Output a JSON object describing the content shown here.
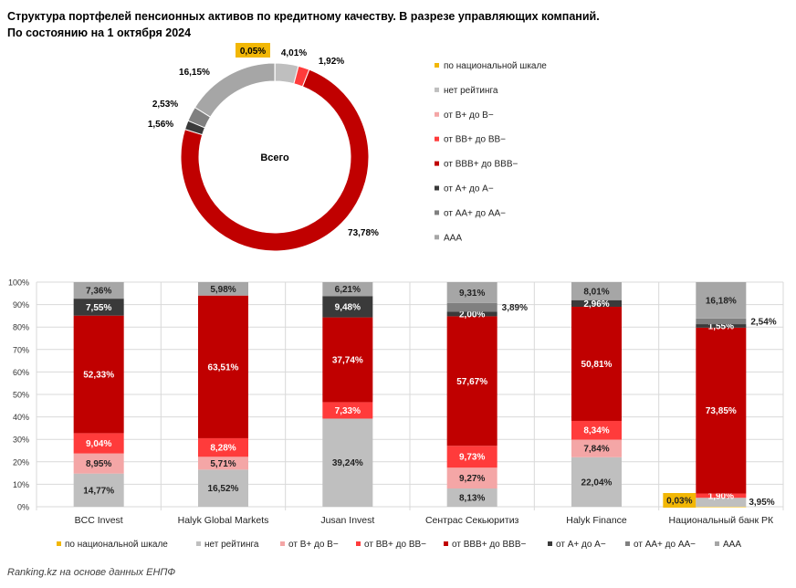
{
  "title": {
    "line1": "Структура портфелей пенсионных активов по кредитному качеству. В разрезе управляющих компаний.",
    "line2": "По состоянию на 1 октября 2024"
  },
  "colors": {
    "по национальной шкале": "#f2b705",
    "нет рейтинга": "#bfbfbf",
    "от B+ до B−": "#f4a6a6",
    "от BB+ до BB−": "#ff3b3b",
    "от BBB+ до BBB−": "#c00000",
    "от A+ до A−": "#3a3a3a",
    "от AA+ до AA−": "#808080",
    "AAA": "#a6a6a6"
  },
  "chart_data": [
    {
      "type": "pie",
      "variant": "donut",
      "center_label": "Всего",
      "legend_placement": "right",
      "legend": [
        "по национальной шкале",
        "нет рейтинга",
        "от B+ до B−",
        "от BB+ до BB−",
        "от BBB+ до BBB−",
        "от A+ до A−",
        "от AA+ до AA−",
        "AAA"
      ],
      "slices": [
        {
          "name": "по национальной шкале",
          "value": 0.05,
          "label": "0,05%"
        },
        {
          "name": "нет рейтинга",
          "value": 4.01,
          "label": "4,01%"
        },
        {
          "name": "от BB+ до BB−",
          "value": 1.92,
          "label": "1,92%"
        },
        {
          "name": "от BBB+ до BBB−",
          "value": 73.78,
          "label": "73,78%"
        },
        {
          "name": "от A+ до A−",
          "value": 1.56,
          "label": "1,56%"
        },
        {
          "name": "от AA+ до AA−",
          "value": 2.53,
          "label": "2,53%"
        },
        {
          "name": "AAA",
          "value": 16.15,
          "label": "16,15%"
        }
      ]
    },
    {
      "type": "bar",
      "stacked": true,
      "percent": true,
      "ylim": [
        0,
        100
      ],
      "yticks": [
        "0%",
        "10%",
        "20%",
        "30%",
        "40%",
        "50%",
        "60%",
        "70%",
        "80%",
        "90%",
        "100%"
      ],
      "legend_placement": "bottom",
      "categories": [
        "BCC Invest",
        "Halyk Global Markets",
        "Jusan Invest",
        "Сентрас Секьюритиз",
        "Halyk Finance",
        "Национальный банк РК"
      ],
      "series": [
        {
          "name": "по национальной шкале",
          "values": [
            0,
            0,
            0,
            0,
            0,
            0.03
          ],
          "labels": [
            "",
            "",
            "",
            "",
            "",
            "0,03%"
          ]
        },
        {
          "name": "нет рейтинга",
          "values": [
            14.77,
            16.52,
            39.24,
            8.13,
            22.04,
            3.95
          ],
          "labels": [
            "14,77%",
            "16,52%",
            "39,24%",
            "8,13%",
            "22,04%",
            "3,95%"
          ]
        },
        {
          "name": "от B+ до B−",
          "values": [
            8.95,
            5.71,
            0,
            9.27,
            7.84,
            0
          ],
          "labels": [
            "8,95%",
            "5,71%",
            "",
            "9,27%",
            "7,84%",
            ""
          ]
        },
        {
          "name": "от BB+ до BB−",
          "values": [
            9.04,
            8.28,
            7.33,
            9.73,
            8.34,
            1.9
          ],
          "labels": [
            "9,04%",
            "8,28%",
            "7,33%",
            "9,73%",
            "8,34%",
            "1,90%"
          ]
        },
        {
          "name": "от BBB+ до BBB−",
          "values": [
            52.33,
            63.51,
            37.74,
            57.67,
            50.81,
            73.85
          ],
          "labels": [
            "52,33%",
            "63,51%",
            "37,74%",
            "57,67%",
            "50,81%",
            "73,85%"
          ]
        },
        {
          "name": "от A+ до A−",
          "values": [
            7.55,
            0,
            9.48,
            2.0,
            2.96,
            1.55
          ],
          "labels": [
            "7,55%",
            "",
            "9,48%",
            "2,00%",
            "2,96%",
            "1,55%"
          ]
        },
        {
          "name": "от AA+ до AA−",
          "values": [
            0,
            0,
            0,
            3.89,
            0,
            2.54
          ],
          "labels": [
            "",
            "",
            "",
            "3,89%",
            "",
            "2,54%"
          ]
        },
        {
          "name": "AAA",
          "values": [
            7.36,
            5.98,
            6.21,
            9.31,
            8.01,
            16.18
          ],
          "labels": [
            "7,36%",
            "5,98%",
            "6,21%",
            "9,31%",
            "8,01%",
            "16,18%"
          ]
        }
      ]
    }
  ],
  "source": "Ranking.kz на основе данных ЕНПФ"
}
